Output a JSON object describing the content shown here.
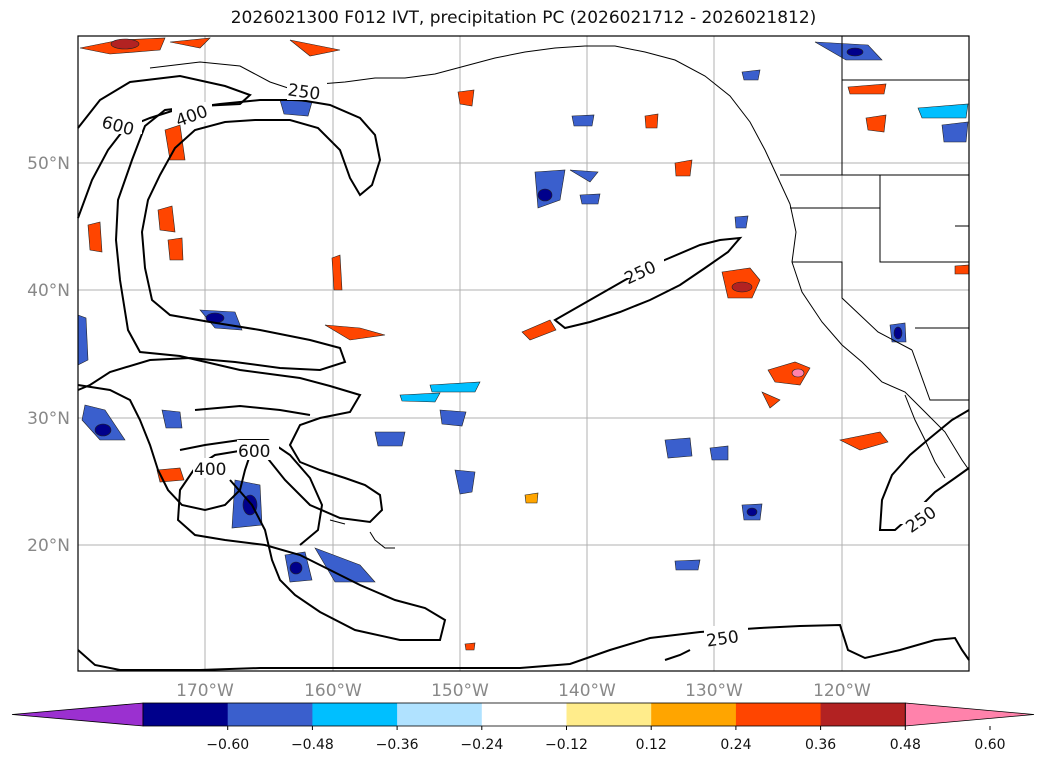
{
  "title": "2026021300 F012 IVT, precipitation PC (2026021712 - 2026021812)",
  "lat_labels": [
    "50°N",
    "40°N",
    "30°N",
    "20°N"
  ],
  "lon_labels": [
    "170°W",
    "160°W",
    "150°W",
    "140°W",
    "130°W",
    "120°W"
  ],
  "contour_labels": {
    "l250_a": "250",
    "l400_a": "400",
    "l600_a": "600",
    "l250_b": "250",
    "l600_b": "600",
    "l400_b": "400",
    "l250_c": "250",
    "l250_d": "250"
  },
  "colorbar": {
    "ticks": [
      "−0.60",
      "−0.48",
      "−0.36",
      "−0.24",
      "−0.12",
      "0.12",
      "0.24",
      "0.36",
      "0.48",
      "0.60"
    ],
    "colors": [
      "#9b30d0",
      "#00008b",
      "#3a5fcd",
      "#00bfff",
      "#b0e2ff",
      "#ffffff",
      "#ffec8b",
      "#ffa500",
      "#ff4500",
      "#b22222",
      "#ff82ab"
    ]
  }
}
